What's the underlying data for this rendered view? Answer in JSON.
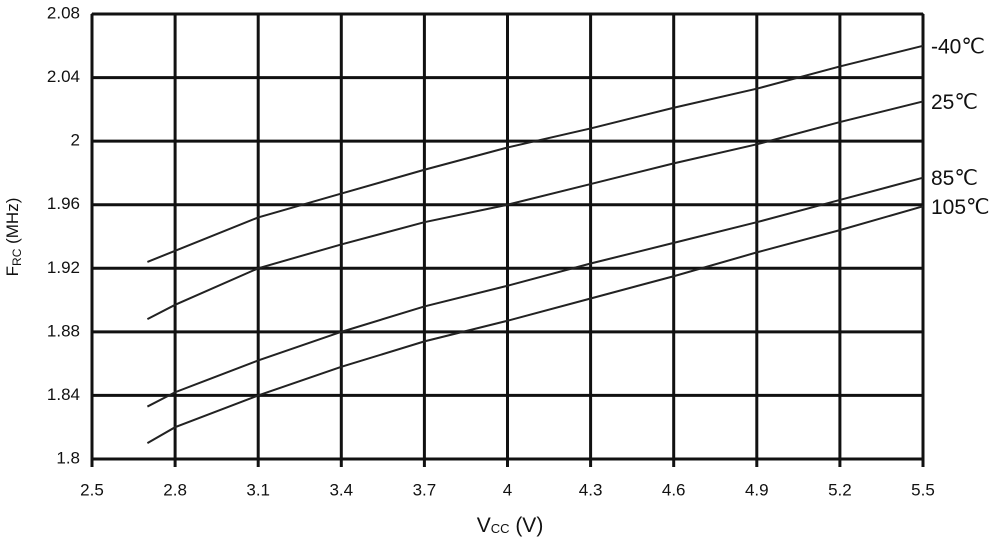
{
  "chart_data": {
    "type": "line",
    "x_label": [
      "V",
      "CC",
      " (V)"
    ],
    "y_label": [
      "F",
      "RC",
      " (MHz)"
    ],
    "x": [
      2.7,
      2.8,
      3.1,
      3.4,
      3.7,
      4.0,
      4.3,
      4.6,
      4.9,
      5.2,
      5.5
    ],
    "series": [
      {
        "name": "-40℃",
        "color": "#222222",
        "values": [
          1.924,
          1.931,
          1.952,
          1.967,
          1.982,
          1.996,
          2.008,
          2.021,
          2.033,
          2.047,
          2.06
        ]
      },
      {
        "name": "25℃",
        "color": "#222222",
        "values": [
          1.888,
          1.897,
          1.92,
          1.935,
          1.949,
          1.96,
          1.973,
          1.986,
          1.998,
          2.012,
          2.025
        ]
      },
      {
        "name": "85℃",
        "color": "#222222",
        "values": [
          1.833,
          1.842,
          1.862,
          1.88,
          1.896,
          1.909,
          1.923,
          1.936,
          1.949,
          1.963,
          1.977
        ]
      },
      {
        "name": "105℃",
        "color": "#222222",
        "values": [
          1.81,
          1.82,
          1.84,
          1.858,
          1.874,
          1.887,
          1.901,
          1.915,
          1.93,
          1.944,
          1.959
        ]
      }
    ],
    "xlim": [
      2.5,
      5.5
    ],
    "xticks": [
      2.5,
      2.8,
      3.1,
      3.4,
      3.7,
      4,
      4.3,
      4.6,
      4.9,
      5.2,
      5.5
    ],
    "ylim": [
      1.8,
      2.08
    ],
    "yticks": [
      1.8,
      1.84,
      1.88,
      1.92,
      1.96,
      2,
      2.04,
      2.08
    ],
    "grid": true
  }
}
